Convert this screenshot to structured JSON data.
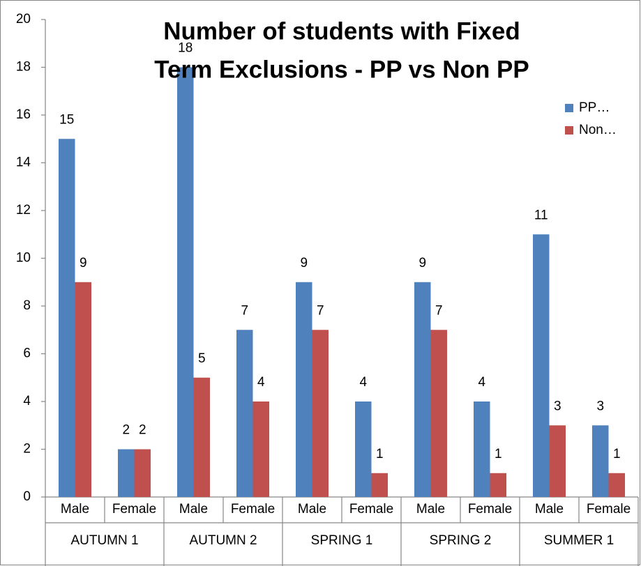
{
  "chart_data": {
    "type": "bar",
    "title": [
      "Number of students with Fixed",
      "Term Exclusions - PP vs Non PP"
    ],
    "categories": [
      "Male",
      "Female",
      "Male",
      "Female",
      "Male",
      "Female",
      "Male",
      "Female",
      "Male",
      "Female"
    ],
    "category_groups": [
      "AUTUMN 1",
      "AUTUMN 2",
      "SPRING 1",
      "SPRING 2",
      "SUMMER 1"
    ],
    "series": [
      {
        "name": "PP…",
        "color": "#4f81bd",
        "values": [
          15,
          2,
          18,
          7,
          9,
          4,
          9,
          4,
          11,
          3
        ]
      },
      {
        "name": "Non…",
        "color": "#c0504d",
        "values": [
          9,
          2,
          5,
          4,
          7,
          1,
          7,
          1,
          3,
          1
        ]
      }
    ],
    "ylim": [
      0,
      20
    ],
    "yticks": [
      0,
      2,
      4,
      6,
      8,
      10,
      12,
      14,
      16,
      18,
      20
    ],
    "legend": "right",
    "grid": false
  }
}
